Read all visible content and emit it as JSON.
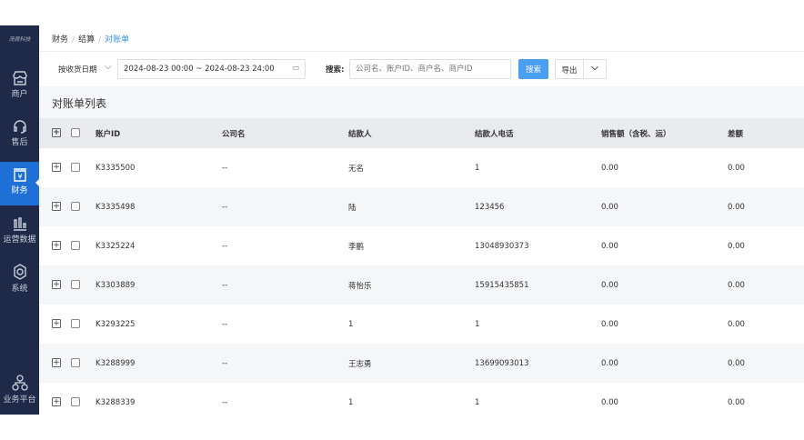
{
  "logo": "茂鼎科技",
  "sidebar": {
    "items": [
      {
        "label": "商户",
        "icon": "store-icon"
      },
      {
        "label": "售后",
        "icon": "headset-icon"
      },
      {
        "label": "财务",
        "icon": "yuan-icon",
        "active": true
      },
      {
        "label": "运营数据",
        "icon": "bar-chart-icon"
      },
      {
        "label": "系统",
        "icon": "gear-icon"
      },
      {
        "label": "业务平台",
        "icon": "org-chart-icon"
      }
    ]
  },
  "breadcrumb": [
    "财务",
    "结算",
    "对账单"
  ],
  "filter": {
    "date_type": "按收货日期",
    "date_range": "2024-08-23 00:00 ~ 2024-08-23 24:00",
    "search_label": "搜索:",
    "search_placeholder": "公司名、账户ID、商户名、商户ID",
    "search_button": "搜索",
    "export_button": "导出"
  },
  "section_title": "对账单列表",
  "table": {
    "columns": [
      "账户ID",
      "公司名",
      "结款人",
      "结款人电话",
      "销售额（含税、运）",
      "差额"
    ],
    "rows": [
      [
        "K3335500",
        "--",
        "无名",
        "1",
        "0.00",
        "0.00"
      ],
      [
        "K3335498",
        "--",
        "陆",
        "123456",
        "0.00",
        "0.00"
      ],
      [
        "K3325224",
        "--",
        "李鹏",
        "13048930373",
        "0.00",
        "0.00"
      ],
      [
        "K3303889",
        "--",
        "蒋怡乐",
        "15915435851",
        "0.00",
        "0.00"
      ],
      [
        "K3293225",
        "--",
        "1",
        "1",
        "0.00",
        "0.00"
      ],
      [
        "K3288999",
        "--",
        "王志勇",
        "13699093013",
        "0.00",
        "0.00"
      ],
      [
        "K3288339",
        "--",
        "1",
        "1",
        "0.00",
        "0.00"
      ]
    ]
  },
  "colors": {
    "sidebar": "#1f2a48",
    "active": "#1e6fd6",
    "primary": "#4a9ff0"
  }
}
